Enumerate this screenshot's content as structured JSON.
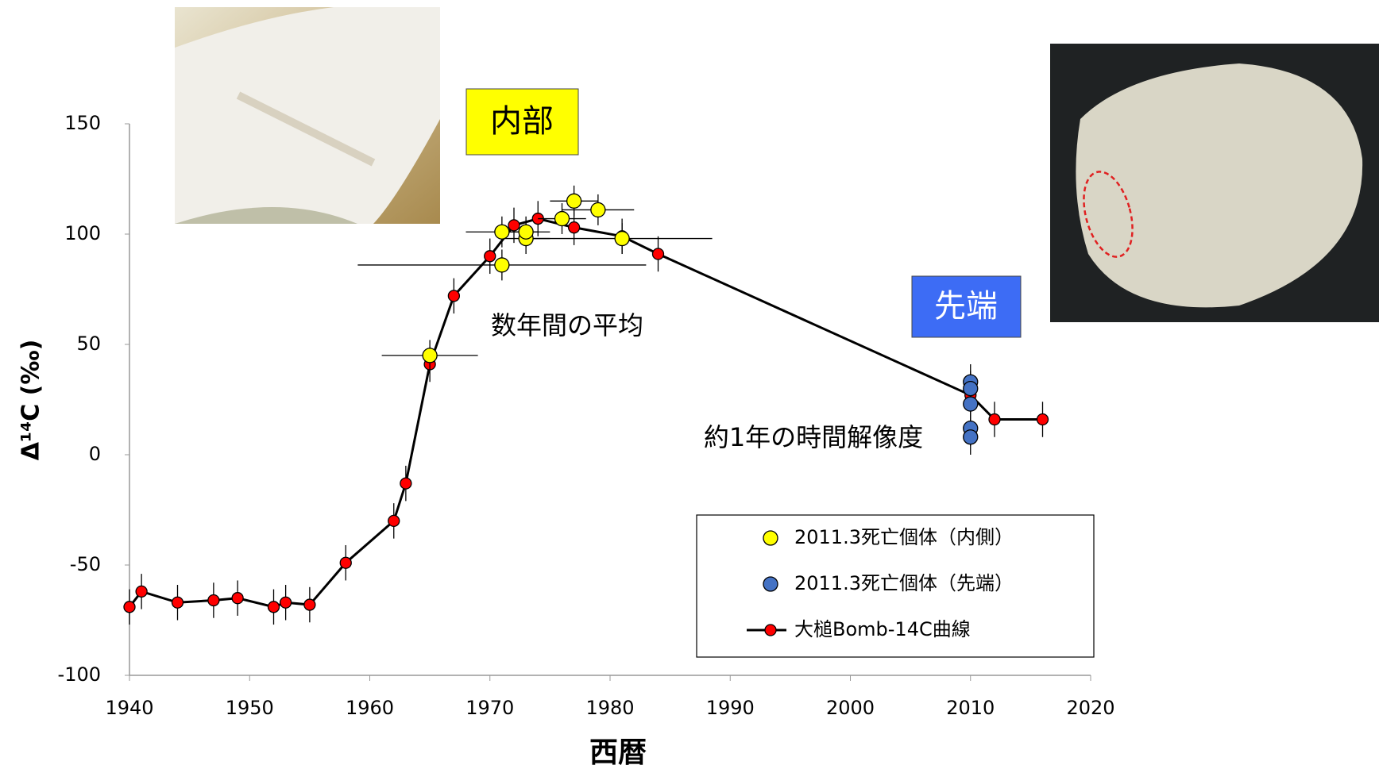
{
  "chart_data": {
    "type": "scatter",
    "xlabel": "西暦",
    "ylabel": "Δ¹⁴C (‰)",
    "xlim": [
      1940,
      2020
    ],
    "xticks": [
      1940,
      1950,
      1960,
      1970,
      1980,
      1990,
      2000,
      2010,
      2020
    ],
    "ylim": [
      -100,
      150
    ],
    "yticks": [
      -100,
      -50,
      0,
      50,
      100,
      150
    ],
    "annotations": [
      "内部",
      "先端",
      "数年間の平均",
      "約1年の時間解像度"
    ],
    "series": [
      {
        "name": "2011.3死亡個体（内側）",
        "color": "#ffff00",
        "x": [
          1965,
          1971,
          1971,
          1973,
          1973,
          1976,
          1977,
          1979,
          1981
        ],
        "values": [
          45,
          86,
          101,
          98,
          101,
          107,
          115,
          111,
          98
        ],
        "errors": [
          7,
          7,
          7,
          7,
          7,
          7,
          7,
          7,
          7
        ],
        "xerr": [
          4,
          12,
          3,
          2,
          2,
          2,
          2,
          3,
          7.5
        ]
      },
      {
        "name": "2011.3死亡個体（先端）",
        "color": "#4472c4",
        "x": [
          2010,
          2010,
          2010,
          2010,
          2010
        ],
        "values": [
          33,
          30,
          23,
          12,
          8
        ],
        "errors": [
          8,
          8,
          8,
          8,
          8
        ]
      },
      {
        "name": "大槌Bomb-14C曲線",
        "color": "#ff0000",
        "line_color": "#000000",
        "x": [
          1940,
          1941,
          1944,
          1947,
          1949,
          1952,
          1953,
          1955,
          1958,
          1962,
          1963,
          1965,
          1967,
          1970,
          1972,
          1974,
          1977,
          1981,
          1984,
          2010,
          2012,
          2016
        ],
        "values": [
          -69,
          -62,
          -67,
          -66,
          -65,
          -69,
          -67,
          -68,
          -49,
          -30,
          -13,
          41,
          72,
          90,
          104,
          107,
          103,
          99,
          91,
          27,
          16,
          16
        ],
        "errors": [
          8,
          8,
          8,
          8,
          8,
          8,
          8,
          8,
          8,
          8,
          8,
          8,
          8,
          8,
          8,
          8,
          8,
          8,
          8,
          8,
          8,
          8
        ]
      }
    ]
  }
}
